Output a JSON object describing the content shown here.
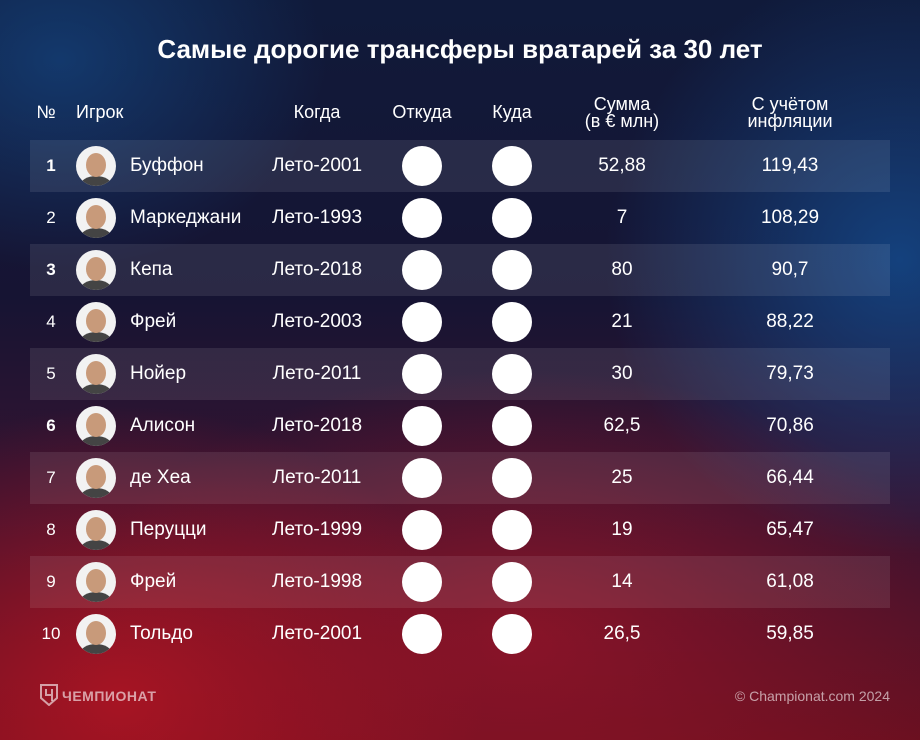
{
  "header": {
    "title": "Самые дорогие трансферы вратарей за 30 лет"
  },
  "table": {
    "columns": {
      "rank": "№",
      "player": "Игрок",
      "when": "Когда",
      "from": "Откуда",
      "to": "Куда",
      "sum": [
        "Сумма",
        "(в € млн)"
      ],
      "inflation": [
        "С учётом",
        "инфляции"
      ]
    },
    "rows": [
      {
        "rank": "1",
        "bold": true,
        "player": "Буффон",
        "when": "Лето-2001",
        "sum": "52,88",
        "inflation": "119,43"
      },
      {
        "rank": "2",
        "player": "Маркеджани",
        "when": "Лето-1993",
        "sum": "7",
        "inflation": "108,29"
      },
      {
        "rank": "3",
        "bold": true,
        "player": "Кепа",
        "when": "Лето-2018",
        "sum": "80",
        "inflation": "90,7"
      },
      {
        "rank": "4",
        "player": "Фрей",
        "when": "Лето-2003",
        "sum": "21",
        "inflation": "88,22"
      },
      {
        "rank": "5",
        "player": "Нойер",
        "when": "Лето-2011",
        "sum": "30",
        "inflation": "79,73"
      },
      {
        "rank": "6",
        "bold": true,
        "player": "Алисон",
        "when": "Лето-2018",
        "sum": "62,5",
        "inflation": "70,86"
      },
      {
        "rank": "7",
        "player": "де Хеа",
        "when": "Лето-2011",
        "sum": "25",
        "inflation": "66,44"
      },
      {
        "rank": "8",
        "player": "Перуцци",
        "when": "Лето-1999",
        "sum": "19",
        "inflation": "65,47"
      },
      {
        "rank": "9",
        "player": "Фрей",
        "when": "Лето-1998",
        "sum": "14",
        "inflation": "61,08"
      },
      {
        "rank": "10",
        "player": "Тольдо",
        "when": "Лето-2001",
        "sum": "26,5",
        "inflation": "59,85"
      }
    ]
  },
  "footer": {
    "brand": "ЧЕМПИОНАТ",
    "copyright": "© Championat.com 2024"
  }
}
